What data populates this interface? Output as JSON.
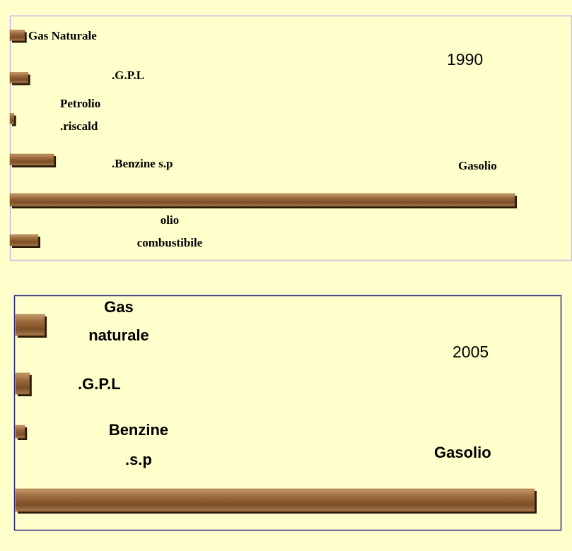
{
  "chart_data": [
    {
      "type": "bar",
      "title": "1990",
      "categories": [
        [
          "Gas Naturale"
        ],
        [
          ".G.P.L"
        ],
        [
          "Petrolio",
          ".riscald"
        ],
        [
          ".Benzine s.p"
        ],
        [
          "Gasolio"
        ],
        [
          "olio",
          "combustibile"
        ]
      ],
      "values": [
        2.9,
        3.6,
        0.8,
        8.7,
        100,
        5.6
      ],
      "color": "#8b5a2b"
    },
    {
      "type": "bar",
      "title": "2005",
      "categories": [
        [
          "Gas",
          "naturale"
        ],
        [
          ".G.P.L"
        ],
        [
          "Benzine",
          ".s.p"
        ],
        [
          "Gasolio"
        ]
      ],
      "values": [
        5.6,
        2.7,
        1.8,
        100
      ],
      "color": "#8b5a2b"
    }
  ]
}
